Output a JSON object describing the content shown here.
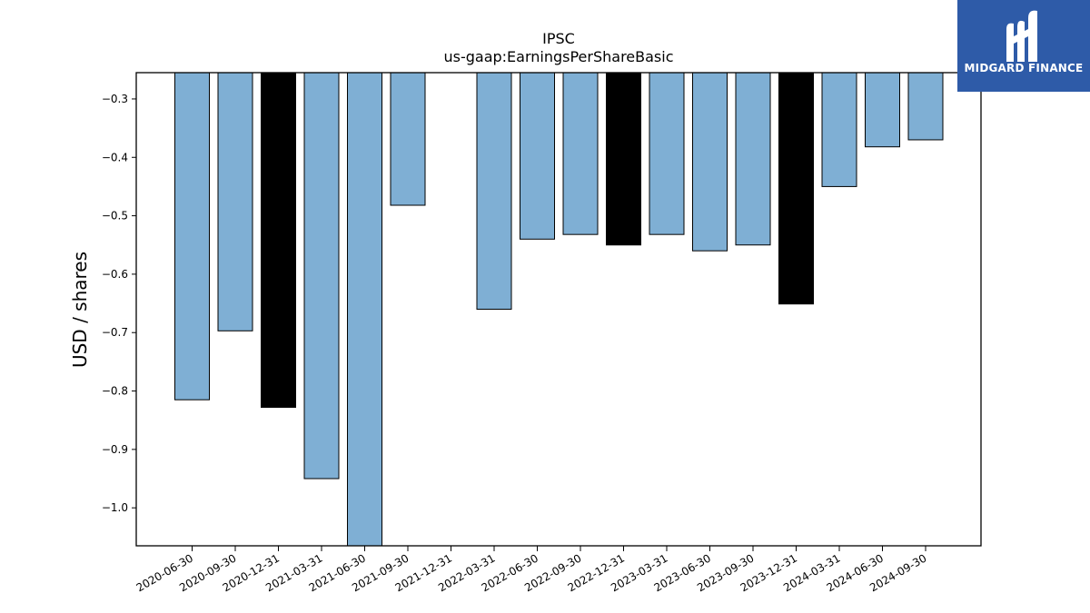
{
  "chart_data": {
    "type": "bar",
    "title": "IPSC",
    "subtitle": "us-gaap:EarningsPerShareBasic",
    "xlabel": "",
    "ylabel": "USD / shares",
    "ylim": [
      -1.065,
      -0.255
    ],
    "yticks": [
      -0.3,
      -0.4,
      -0.5,
      -0.6,
      -0.7,
      -0.8,
      -0.9,
      -1.0
    ],
    "ytick_labels": [
      "−0.3",
      "−0.4",
      "−0.5",
      "−0.6",
      "−0.7",
      "−0.8",
      "−0.9",
      "−1.0"
    ],
    "categories": [
      "2020-06-30",
      "2020-09-30",
      "2020-12-31",
      "2021-03-31",
      "2021-06-30",
      "2021-09-30",
      "2021-12-31",
      "2022-03-31",
      "2022-06-30",
      "2022-09-30",
      "2022-12-31",
      "2023-03-31",
      "2023-06-30",
      "2023-09-30",
      "2023-12-31",
      "2024-03-31",
      "2024-06-30",
      "2024-09-30"
    ],
    "values": [
      -0.815,
      -0.697,
      -0.828,
      -0.95,
      -1.07,
      -0.482,
      null,
      -0.66,
      -0.54,
      -0.532,
      -0.55,
      -0.532,
      -0.56,
      -0.55,
      -0.651,
      -0.45,
      -0.382,
      -0.37
    ],
    "bar_colors": [
      "#7fafd4",
      "#7fafd4",
      "#000000",
      "#7fafd4",
      "#7fafd4",
      "#7fafd4",
      "#7fafd4",
      "#7fafd4",
      "#7fafd4",
      "#7fafd4",
      "#000000",
      "#7fafd4",
      "#7fafd4",
      "#7fafd4",
      "#000000",
      "#7fafd4",
      "#7fafd4",
      "#7fafd4"
    ],
    "grid": false,
    "legend": "none"
  },
  "logo": {
    "text": "MIDGARD FINANCE",
    "background": "#2e5ba8",
    "icon": "midgard-logo-icon"
  }
}
